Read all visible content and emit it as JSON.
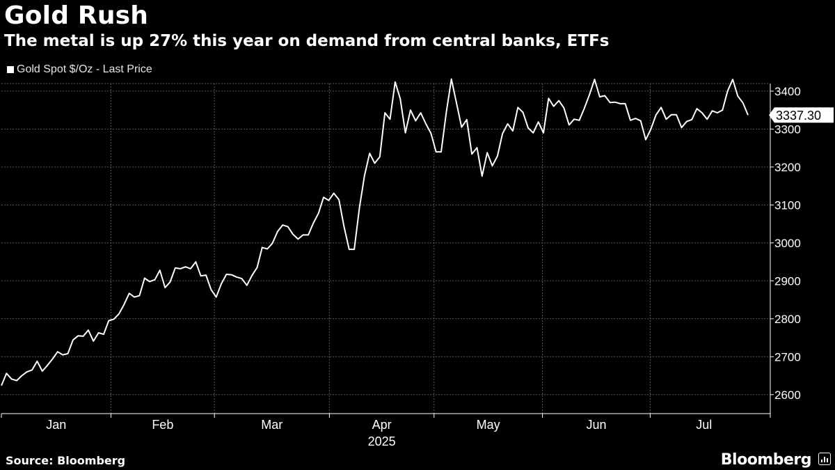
{
  "header": {
    "title": "Gold Rush",
    "subtitle": "The metal is up 27% this year on demand from central banks, ETFs"
  },
  "legend": {
    "label": "Gold Spot $/Oz - Last Price"
  },
  "footer": {
    "source": "Source: Bloomberg",
    "brand": "Bloomberg"
  },
  "colors": {
    "background": "#000000",
    "line": "#ffffff",
    "grid": "#5a5a5a"
  },
  "chart_data": {
    "type": "line",
    "title": "Gold Rush",
    "subtitle": "The metal is up 27% this year on demand from central banks, ETFs",
    "year_label": "2025",
    "ylim": [
      2550,
      3420
    ],
    "y_ticks": [
      2600,
      2700,
      2800,
      2900,
      3000,
      3100,
      3200,
      3300,
      3400
    ],
    "x_ticks": [
      "Jan",
      "Feb",
      "Mar",
      "Apr",
      "May",
      "Jun",
      "Jul"
    ],
    "grid": true,
    "y_axis_position": "right",
    "last_value_label": "3337.30",
    "series": [
      {
        "name": "Gold Spot $/Oz - Last Price",
        "values": [
          2624,
          2656,
          2641,
          2637,
          2650,
          2660,
          2665,
          2688,
          2662,
          2677,
          2694,
          2713,
          2705,
          2708,
          2744,
          2755,
          2754,
          2770,
          2741,
          2763,
          2759,
          2795,
          2799,
          2813,
          2838,
          2867,
          2857,
          2861,
          2907,
          2898,
          2903,
          2928,
          2882,
          2897,
          2934,
          2932,
          2937,
          2932,
          2950,
          2913,
          2915,
          2877,
          2857,
          2892,
          2917,
          2916,
          2910,
          2906,
          2888,
          2914,
          2935,
          2988,
          2984,
          2999,
          3030,
          3047,
          3043,
          3023,
          3010,
          3021,
          3021,
          3052,
          3078,
          3120,
          3112,
          3131,
          3114,
          3043,
          2983,
          2983,
          3092,
          3177,
          3236,
          3210,
          3227,
          3343,
          3326,
          3424,
          3380,
          3290,
          3350,
          3322,
          3343,
          3314,
          3289,
          3240,
          3240,
          3344,
          3432,
          3368,
          3305,
          3325,
          3234,
          3251,
          3176,
          3238,
          3203,
          3229,
          3288,
          3314,
          3295,
          3357,
          3344,
          3303,
          3290,
          3319,
          3290,
          3381,
          3360,
          3375,
          3356,
          3311,
          3326,
          3323,
          3355,
          3391,
          3431,
          3385,
          3388,
          3370,
          3371,
          3367,
          3367,
          3323,
          3328,
          3322,
          3272,
          3300,
          3337,
          3357,
          3326,
          3338,
          3338,
          3304,
          3320,
          3325,
          3354,
          3343,
          3326,
          3348,
          3343,
          3350,
          3400,
          3431,
          3387,
          3369,
          3337
        ]
      }
    ]
  }
}
